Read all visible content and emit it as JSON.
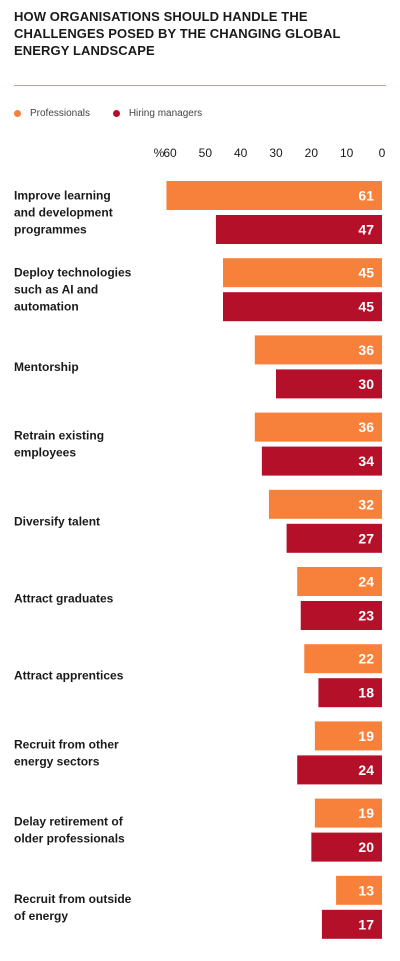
{
  "chart_data": {
    "type": "bar",
    "orientation": "horizontal",
    "title": "HOW ORGANISATIONS SHOULD HANDLE THE CHALLENGES POSED BY THE CHANGING GLOBAL ENERGY LANDSCAPE",
    "unit_label": "%",
    "xlim": [
      0,
      60
    ],
    "x_reversed": true,
    "ticks": [
      "60",
      "50",
      "40",
      "30",
      "20",
      "10",
      "0"
    ],
    "legend_position": "top-left",
    "grid": false,
    "categories": [
      [
        "Improve learning",
        "and development",
        "programmes"
      ],
      [
        "Deploy technologies",
        "such as AI and",
        "automation"
      ],
      [
        "Mentorship"
      ],
      [
        "Retrain existing",
        "employees"
      ],
      [
        "Diversify talent"
      ],
      [
        "Attract graduates"
      ],
      [
        "Attract apprentices"
      ],
      [
        "Recruit from other",
        "energy sectors"
      ],
      [
        "Delay retirement of",
        "older professionals"
      ],
      [
        "Recruit from outside",
        "of energy"
      ]
    ],
    "series": [
      {
        "name": "Professionals",
        "color": "#f7803a",
        "values": [
          61,
          45,
          36,
          36,
          32,
          24,
          22,
          19,
          19,
          13
        ]
      },
      {
        "name": "Hiring managers",
        "color": "#b5102a",
        "values": [
          47,
          45,
          30,
          34,
          27,
          23,
          18,
          24,
          20,
          17
        ]
      }
    ]
  }
}
